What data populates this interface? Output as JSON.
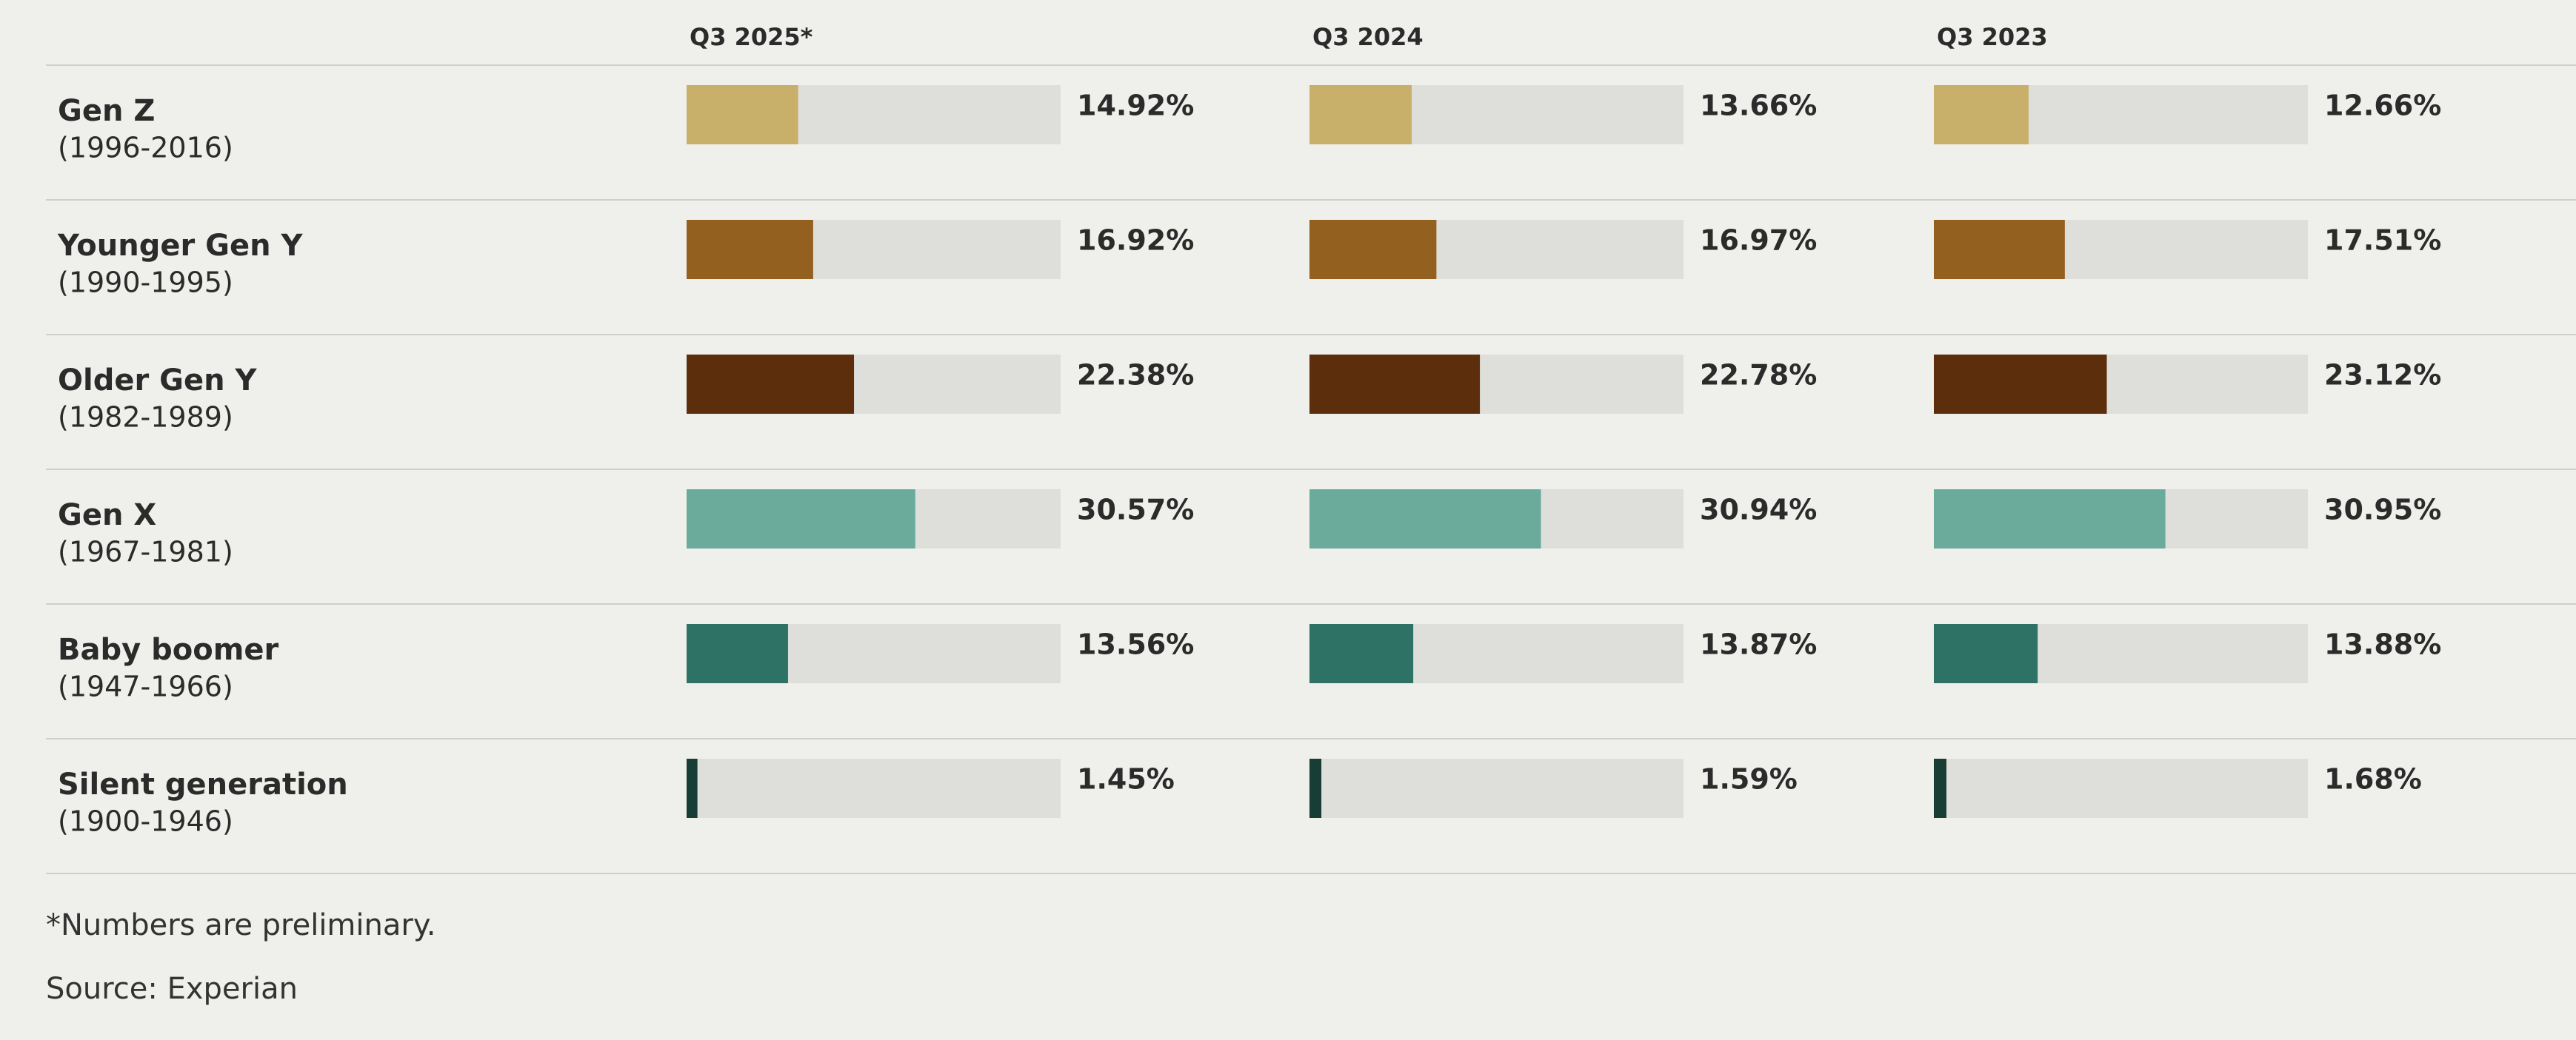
{
  "chart_data": {
    "type": "bar",
    "categories": [
      "Gen Z",
      "Younger Gen Y",
      "Older Gen Y",
      "Gen X",
      "Baby boomer",
      "Silent generation"
    ],
    "category_years": [
      "(1996-2016)",
      "(1990-1995)",
      "(1982-1989)",
      "(1967-1981)",
      "(1947-1966)",
      "(1900-1946)"
    ],
    "colors": [
      "#c9b06a",
      "#94601f",
      "#5c2e0c",
      "#6aab9c",
      "#2e7266",
      "#173d35"
    ],
    "xlim": [
      0,
      50
    ],
    "series": [
      {
        "name": "Q3 2025*",
        "values": [
          14.92,
          16.92,
          22.38,
          30.57,
          13.56,
          1.45
        ],
        "value_labels": [
          "14.92%",
          "16.92%",
          "22.38%",
          "30.57%",
          "13.56%",
          "1.45%"
        ]
      },
      {
        "name": "Q3 2024",
        "values": [
          13.66,
          16.97,
          22.78,
          30.94,
          13.87,
          1.59
        ],
        "value_labels": [
          "13.66%",
          "16.97%",
          "22.78%",
          "30.94%",
          "13.87%",
          "1.59%"
        ]
      },
      {
        "name": "Q3 2023",
        "values": [
          12.66,
          17.51,
          23.12,
          30.95,
          13.88,
          1.68
        ],
        "value_labels": [
          "12.66%",
          "17.51%",
          "23.12%",
          "30.95%",
          "13.88%",
          "1.68%"
        ]
      }
    ],
    "footnote": "*Numbers are preliminary.",
    "source": "Source: Experian"
  }
}
